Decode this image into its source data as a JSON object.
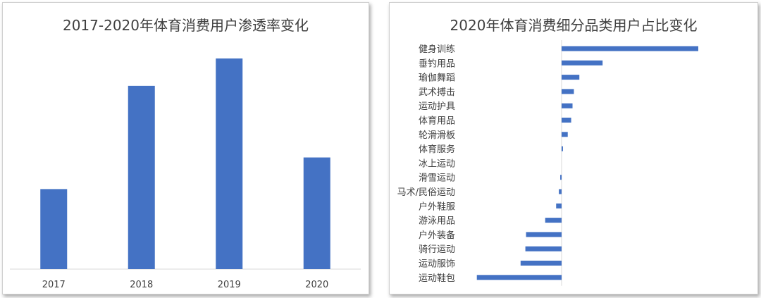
{
  "chart_data": [
    {
      "type": "bar",
      "title": "2017-2020年体育消费用户渗透率变化",
      "categories": [
        "2017",
        "2018",
        "2019",
        "2020"
      ],
      "values": [
        0.38,
        0.87,
        1.0,
        0.53
      ],
      "color": "#4472C4",
      "xlabel": "",
      "ylabel": "",
      "grid": false,
      "legend": "none"
    },
    {
      "type": "bar",
      "orientation": "horizontal",
      "title": "2020年体育消费细分品类用户占比变化",
      "categories": [
        "健身训练",
        "垂钓用品",
        "瑜伽舞蹈",
        "武术搏击",
        "运动护具",
        "体育用品",
        "轮滑滑板",
        "体育服务",
        "冰上运动",
        "滑雪运动",
        "马术/民俗运动",
        "户外鞋服",
        "游泳用品",
        "户外装备",
        "骑行运动",
        "运动服饰",
        "运动鞋包"
      ],
      "values": [
        1.0,
        0.3,
        0.13,
        0.09,
        0.08,
        0.07,
        0.045,
        0.01,
        0.0,
        -0.01,
        -0.02,
        -0.04,
        -0.12,
        -0.26,
        -0.265,
        -0.3,
        -0.62
      ],
      "color": "#4472C4",
      "xlabel": "",
      "ylabel": "",
      "grid": false,
      "legend": "none"
    }
  ]
}
